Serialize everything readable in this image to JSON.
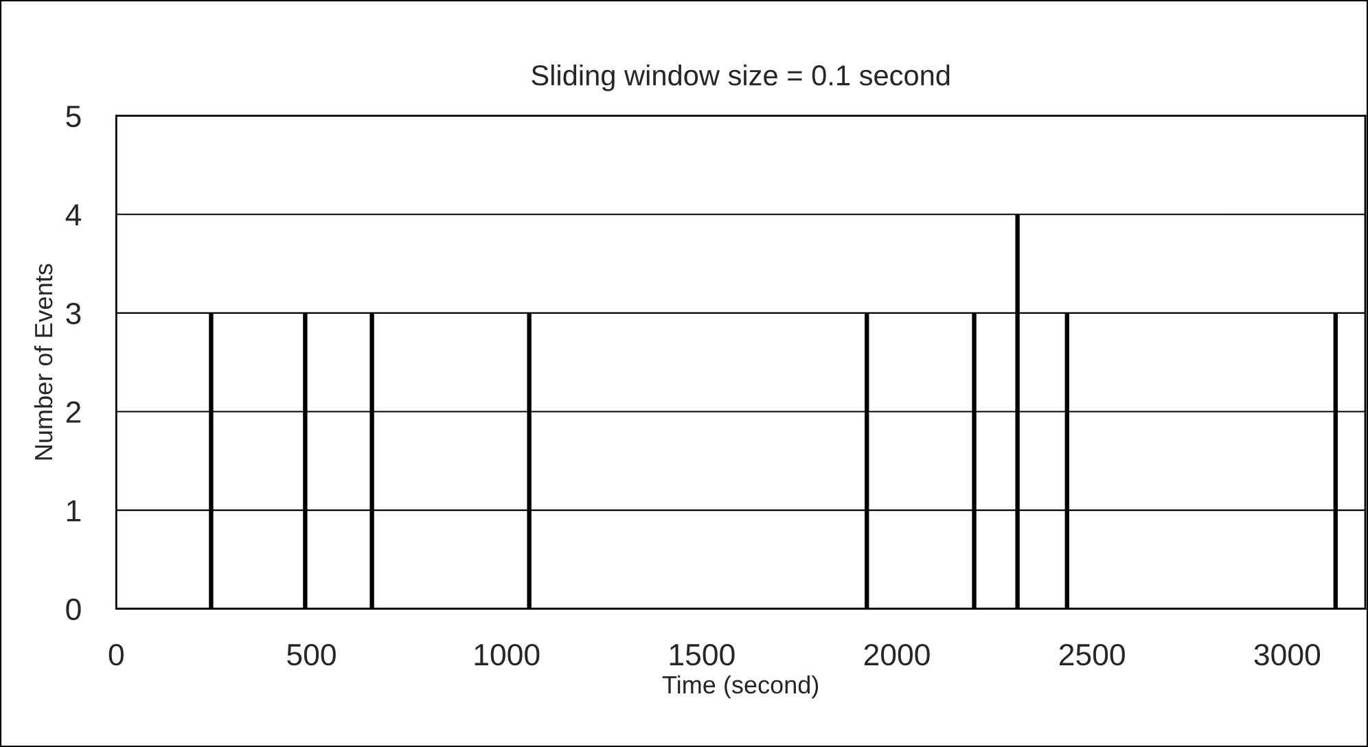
{
  "chart_data": {
    "type": "bar",
    "title": "Sliding window size = 0.1 second",
    "xlabel": "Time (second)",
    "ylabel": "Number of Events",
    "x": [
      243,
      484,
      655,
      1058,
      1923,
      2198,
      2309,
      2436,
      3124
    ],
    "values": [
      3,
      3,
      3,
      3,
      3,
      3,
      4,
      3,
      3
    ],
    "color": "#000000",
    "xlim": [
      0,
      3200
    ],
    "xticks": [
      0,
      500,
      1000,
      1500,
      2000,
      2500,
      3000
    ],
    "ylim": [
      0,
      5
    ],
    "yticks": [
      0,
      1,
      2,
      3,
      4,
      5
    ],
    "grid": "y"
  }
}
